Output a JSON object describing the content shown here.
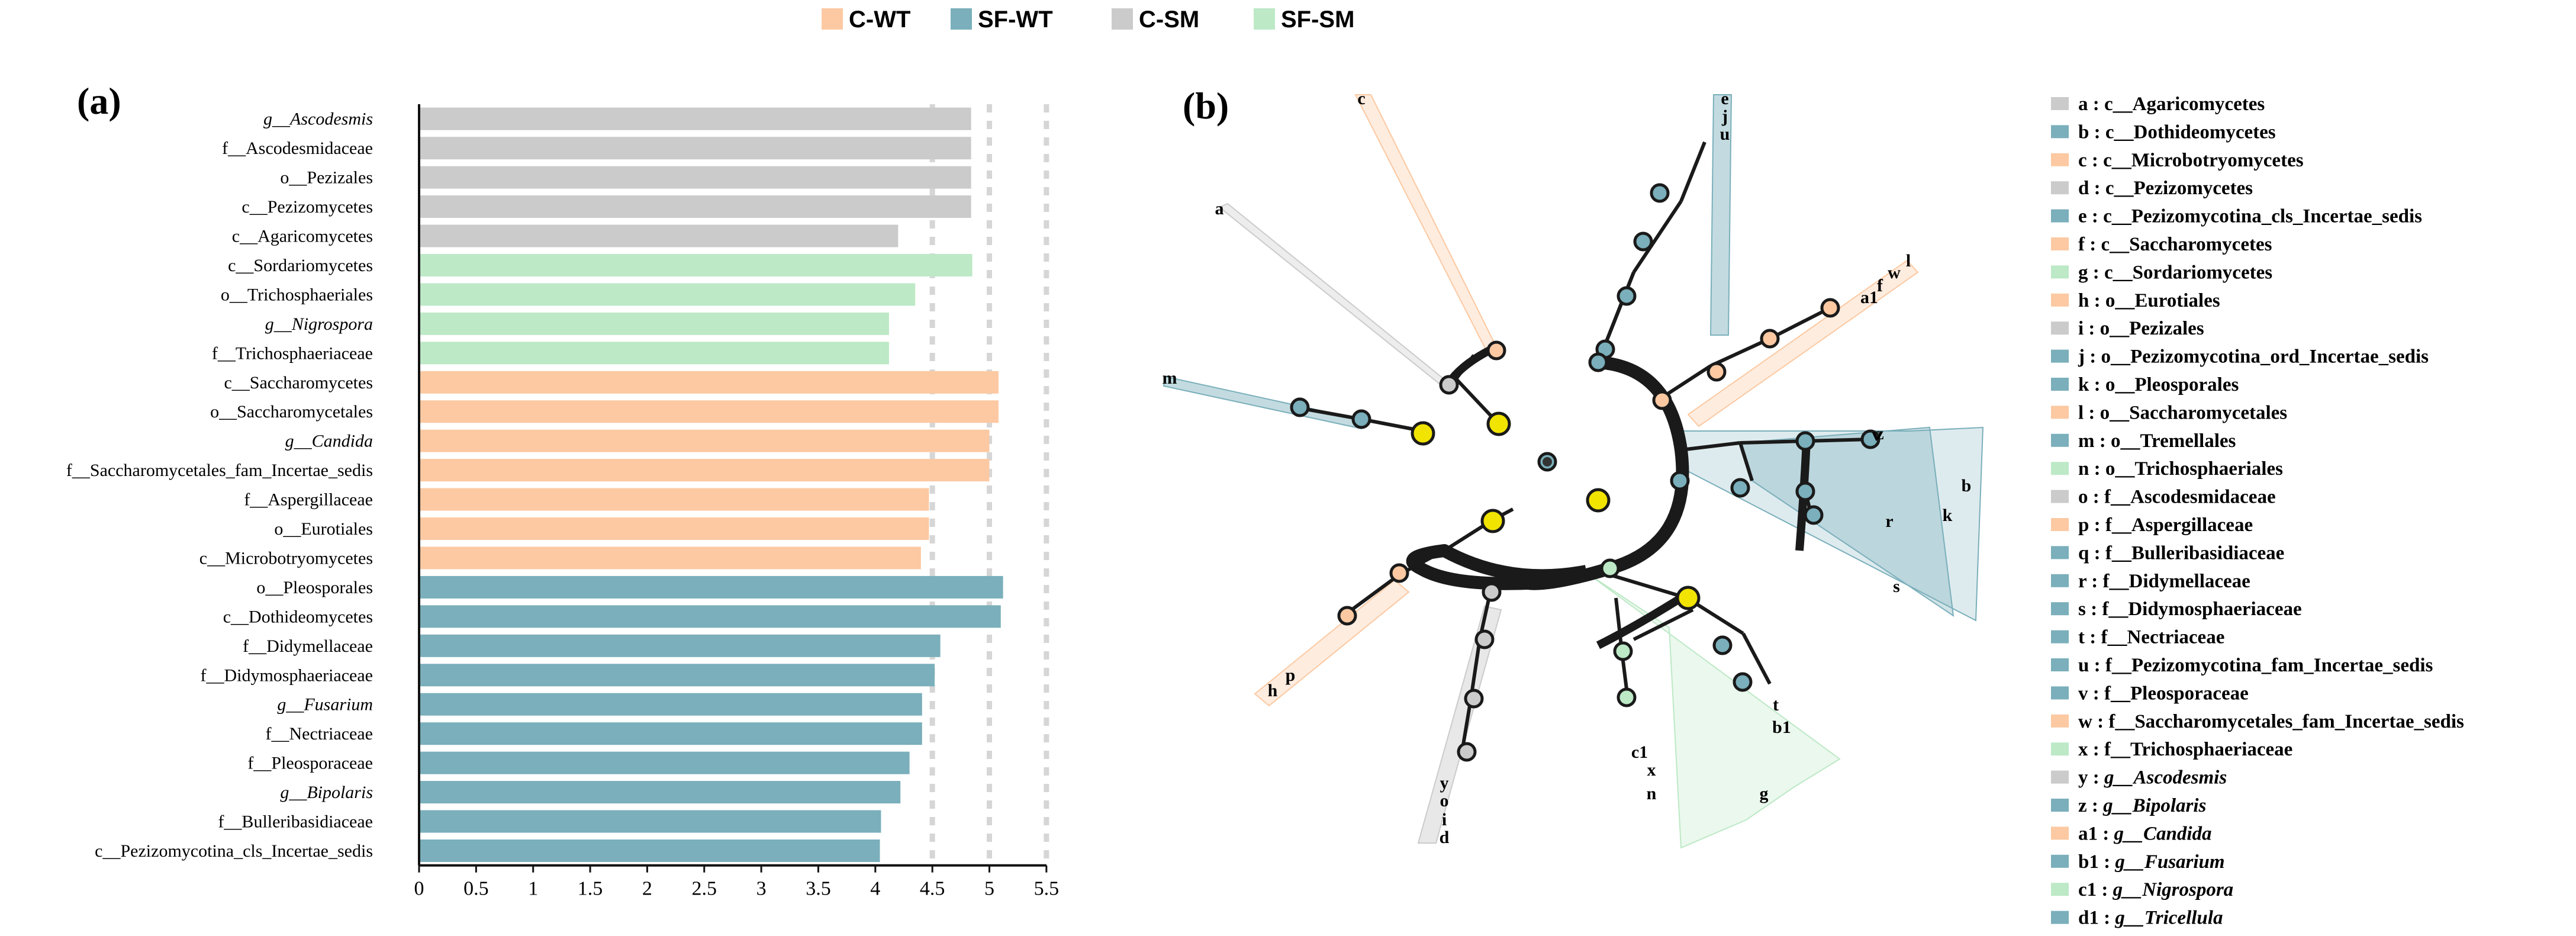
{
  "legend": [
    {
      "name": "C-WT",
      "color": "#fcc9a2"
    },
    {
      "name": "SF-WT",
      "color": "#7aafbb"
    },
    {
      "name": "C-SM",
      "color": "#cbcbcb"
    },
    {
      "name": "SF-SM",
      "color": "#bde9c6"
    }
  ],
  "panel_a_label": "(a)",
  "panel_b_label": "(b)",
  "chart_data": {
    "type": "bar",
    "orientation": "horizontal",
    "title": "",
    "xlabel": "",
    "ylabel": "",
    "xlim": [
      0,
      5.5
    ],
    "xticks": [
      "0",
      "0.5",
      "1",
      "1.5",
      "2",
      "2.5",
      "3",
      "3.5",
      "4",
      "4.5",
      "5",
      "5.5"
    ],
    "categories": [
      {
        "label": "g__Ascodesmis",
        "prefix": "g__",
        "name": "Ascodesmis",
        "italic": true,
        "group": "C-SM",
        "value": 4.84
      },
      {
        "label": "f__Ascodesmidaceae",
        "italic": false,
        "group": "C-SM",
        "value": 4.84
      },
      {
        "label": "o__Pezizales",
        "italic": false,
        "group": "C-SM",
        "value": 4.84
      },
      {
        "label": "c__Pezizomycetes",
        "italic": false,
        "group": "C-SM",
        "value": 4.84
      },
      {
        "label": "c__Agaricomycetes",
        "italic": false,
        "group": "C-SM",
        "value": 4.2
      },
      {
        "label": "c__Sordariomycetes",
        "italic": false,
        "group": "SF-SM",
        "value": 4.85
      },
      {
        "label": "o__Trichosphaeriales",
        "italic": false,
        "group": "SF-SM",
        "value": 4.35
      },
      {
        "label": "g__Nigrospora",
        "prefix": "g__",
        "name": "Nigrospora",
        "italic": true,
        "group": "SF-SM",
        "value": 4.12
      },
      {
        "label": "f__Trichosphaeriaceae",
        "italic": false,
        "group": "SF-SM",
        "value": 4.12
      },
      {
        "label": "c__Saccharomycetes",
        "italic": false,
        "group": "C-WT",
        "value": 5.08
      },
      {
        "label": "o__Saccharomycetales",
        "italic": false,
        "group": "C-WT",
        "value": 5.08
      },
      {
        "label": "g__Candida",
        "prefix": "g__",
        "name": "Candida",
        "italic": true,
        "group": "C-WT",
        "value": 5.0
      },
      {
        "label": "f__Saccharomycetales_fam_Incertae_sedis",
        "italic": false,
        "group": "C-WT",
        "value": 5.0
      },
      {
        "label": "f__Aspergillaceae",
        "italic": false,
        "group": "C-WT",
        "value": 4.47
      },
      {
        "label": "o__Eurotiales",
        "italic": false,
        "group": "C-WT",
        "value": 4.47
      },
      {
        "label": "c__Microbotryomycetes",
        "italic": false,
        "group": "C-WT",
        "value": 4.4
      },
      {
        "label": "o__Pleosporales",
        "italic": false,
        "group": "SF-WT",
        "value": 5.12
      },
      {
        "label": "c__Dothideomycetes",
        "italic": false,
        "group": "SF-WT",
        "value": 5.1
      },
      {
        "label": "f__Didymellaceae",
        "italic": false,
        "group": "SF-WT",
        "value": 4.57
      },
      {
        "label": "f__Didymosphaeriaceae",
        "italic": false,
        "group": "SF-WT",
        "value": 4.52
      },
      {
        "label": "g__Fusarium",
        "prefix": "g__",
        "name": "Fusarium",
        "italic": true,
        "group": "SF-WT",
        "value": 4.41
      },
      {
        "label": "f__Nectriaceae",
        "italic": false,
        "group": "SF-WT",
        "value": 4.41
      },
      {
        "label": "f__Pleosporaceae",
        "italic": false,
        "group": "SF-WT",
        "value": 4.3
      },
      {
        "label": "g__Bipolaris",
        "prefix": "g__",
        "name": "Bipolaris",
        "italic": true,
        "group": "SF-WT",
        "value": 4.22
      },
      {
        "label": "f__Bulleribasidiaceae",
        "italic": false,
        "group": "SF-WT",
        "value": 4.05
      },
      {
        "label": "c__Pezizomycotina_cls_Incertae_sedis",
        "italic": false,
        "group": "SF-WT",
        "value": 4.04
      }
    ]
  },
  "cladogram_legend": [
    {
      "key": "a",
      "text": "c__Agaricomycetes",
      "italic": false,
      "group": "C-SM"
    },
    {
      "key": "b",
      "text": "c__Dothideomycetes",
      "italic": false,
      "group": "SF-WT"
    },
    {
      "key": "c",
      "text": "c__Microbotryomycetes",
      "italic": false,
      "group": "C-WT"
    },
    {
      "key": "d",
      "text": "c__Pezizomycetes",
      "italic": false,
      "group": "C-SM"
    },
    {
      "key": "e",
      "text": "c__Pezizomycotina_cls_Incertae_sedis",
      "italic": false,
      "group": "SF-WT"
    },
    {
      "key": "f",
      "text": "c__Saccharomycetes",
      "italic": false,
      "group": "C-WT"
    },
    {
      "key": "g",
      "text": "c__Sordariomycetes",
      "italic": false,
      "group": "SF-SM"
    },
    {
      "key": "h",
      "text": "o__Eurotiales",
      "italic": false,
      "group": "C-WT"
    },
    {
      "key": "i",
      "text": "o__Pezizales",
      "italic": false,
      "group": "C-SM"
    },
    {
      "key": "j",
      "text": "o__Pezizomycotina_ord_Incertae_sedis",
      "italic": false,
      "group": "SF-WT"
    },
    {
      "key": "k",
      "text": "o__Pleosporales",
      "italic": false,
      "group": "SF-WT"
    },
    {
      "key": "l",
      "text": "o__Saccharomycetales",
      "italic": false,
      "group": "C-WT"
    },
    {
      "key": "m",
      "text": "o__Tremellales",
      "italic": false,
      "group": "SF-WT"
    },
    {
      "key": "n",
      "text": "o__Trichosphaeriales",
      "italic": false,
      "group": "SF-SM"
    },
    {
      "key": "o",
      "text": "f__Ascodesmidaceae",
      "italic": false,
      "group": "C-SM"
    },
    {
      "key": "p",
      "text": "f__Aspergillaceae",
      "italic": false,
      "group": "C-WT"
    },
    {
      "key": "q",
      "text": "f__Bulleribasidiaceae",
      "italic": false,
      "group": "SF-WT"
    },
    {
      "key": "r",
      "text": "f__Didymellaceae",
      "italic": false,
      "group": "SF-WT"
    },
    {
      "key": "s",
      "text": "f__Didymosphaeriaceae",
      "italic": false,
      "group": "SF-WT"
    },
    {
      "key": "t",
      "text": "f__Nectriaceae",
      "italic": false,
      "group": "SF-WT"
    },
    {
      "key": "u",
      "text": "f__Pezizomycotina_fam_Incertae_sedis",
      "italic": false,
      "group": "SF-WT"
    },
    {
      "key": "v",
      "text": "f__Pleosporaceae",
      "italic": false,
      "group": "SF-WT"
    },
    {
      "key": "w",
      "text": "f__Saccharomycetales_fam_Incertae_sedis",
      "italic": false,
      "group": "C-WT"
    },
    {
      "key": "x",
      "text": "f__Trichosphaeriaceae",
      "italic": false,
      "group": "SF-SM"
    },
    {
      "key": "y",
      "text": "g__Ascodesmis",
      "prefix": "g__",
      "name": "Ascodesmis",
      "italic": true,
      "group": "C-SM"
    },
    {
      "key": "z",
      "text": "g__Bipolaris",
      "prefix": "g__",
      "name": "Bipolaris",
      "italic": true,
      "group": "SF-WT"
    },
    {
      "key": "a1",
      "text": "g__Candida",
      "prefix": "g__",
      "name": "Candida",
      "italic": true,
      "group": "C-WT"
    },
    {
      "key": "b1",
      "text": "g__Fusarium",
      "prefix": "g__",
      "name": "Fusarium",
      "italic": true,
      "group": "SF-WT"
    },
    {
      "key": "c1",
      "text": "g__Nigrospora",
      "prefix": "g__",
      "name": "Nigrospora",
      "italic": true,
      "group": "SF-SM"
    },
    {
      "key": "d1",
      "text": "g__Tricellula",
      "prefix": "g__",
      "name": "Tricellula",
      "italic": true,
      "group": "SF-WT"
    }
  ]
}
